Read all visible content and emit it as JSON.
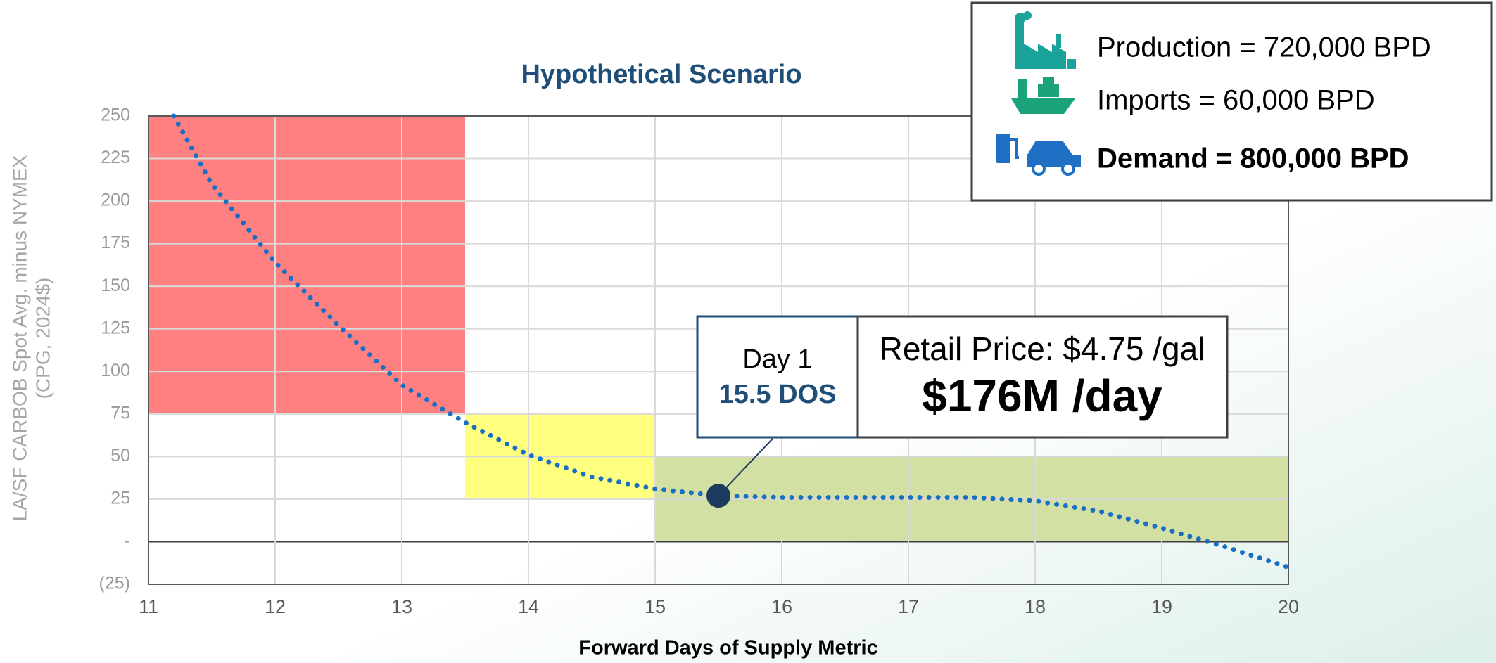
{
  "chart_data": {
    "type": "line",
    "title": "Hypothetical Scenario",
    "x_label": "Forward Days of Supply Metric",
    "y_label": [
      "LA/SF CARBOB Spot Avg. minus NYMEX",
      "(CPG, 2024$)"
    ],
    "x": [
      11.2,
      11.5,
      12,
      12.5,
      13,
      13.5,
      14,
      14.5,
      15,
      15.5,
      16,
      16.5,
      17,
      17.5,
      18,
      18.5,
      19,
      19.5,
      20
    ],
    "series": [
      {
        "color": "#1a6fc4",
        "values": [
          250,
          210,
          164,
          127,
          92,
          70,
          51,
          38,
          31,
          27,
          26,
          26,
          26,
          26,
          24,
          18,
          8,
          -3,
          -15
        ]
      }
    ],
    "zones": [
      {
        "x": [
          11,
          13.5
        ],
        "y": [
          75,
          250
        ],
        "color": "#ff8080"
      },
      {
        "x": [
          13.5,
          15
        ],
        "y": [
          25,
          75
        ],
        "color": "#ffff80"
      },
      {
        "x": [
          15,
          20
        ],
        "y": [
          0,
          50
        ],
        "color": "#d3e0a4"
      }
    ],
    "highlight": {
      "x": 15.5,
      "y": 27,
      "color": "#1c3a5e"
    },
    "xlim": [
      11,
      20
    ],
    "xticks": [
      11,
      12,
      13,
      14,
      15,
      16,
      17,
      18,
      19,
      20
    ],
    "ylim": [
      -25,
      250
    ],
    "yticks": [
      {
        "value": -25,
        "label": "(25)"
      },
      {
        "value": 0,
        "label": "-"
      },
      25,
      50,
      75,
      100,
      125,
      150,
      175,
      200,
      225,
      250
    ],
    "grid": true,
    "annotations": {
      "day": "Day 1",
      "dos": "15.5 DOS",
      "retail": "Retail Price: $4.75 /gal",
      "cost": "$176M /day"
    },
    "info": [
      "Production = 720,000 BPD",
      "Imports = 60,000 BPD",
      "Demand = 800,000 BPD"
    ]
  }
}
